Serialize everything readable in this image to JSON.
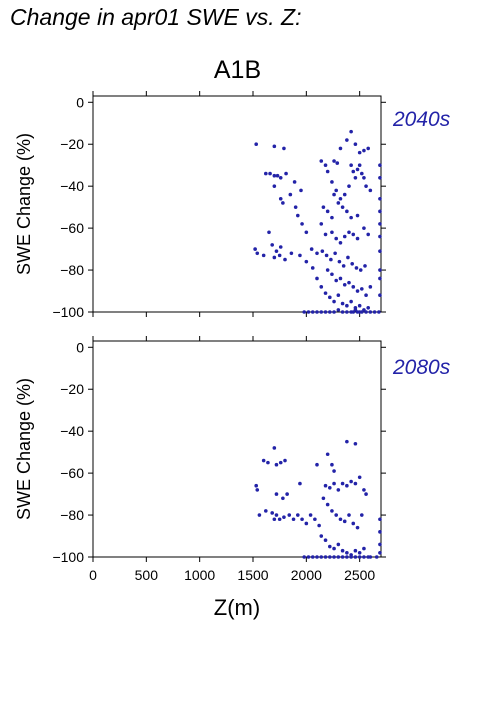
{
  "header": {
    "title": "Change in apr01 SWE vs. Z:",
    "scenario": "A1B"
  },
  "chart_data": [
    {
      "type": "scatter",
      "period_label": "2040s",
      "ylabel": "SWE Change (%)",
      "xlabel": "",
      "xlim": [
        0,
        2700
      ],
      "ylim": [
        -100,
        3
      ],
      "xticks": [
        0,
        500,
        1000,
        1500,
        2000,
        2500
      ],
      "yticks": [
        0,
        -20,
        -40,
        -60,
        -80,
        -100
      ],
      "ytick_labels": [
        "0",
        "−20",
        "−40",
        "−60",
        "−80",
        "−100"
      ],
      "show_x_tick_labels": false,
      "point_color": "#2323a8",
      "points": [
        [
          1530,
          -20
        ],
        [
          1700,
          -21
        ],
        [
          1790,
          -22
        ],
        [
          1620,
          -34
        ],
        [
          1660,
          -34
        ],
        [
          1700,
          -35
        ],
        [
          1730,
          -35
        ],
        [
          1760,
          -36
        ],
        [
          1810,
          -34
        ],
        [
          1890,
          -38
        ],
        [
          1950,
          -42
        ],
        [
          1700,
          -40
        ],
        [
          1760,
          -46
        ],
        [
          1780,
          -48
        ],
        [
          1850,
          -44
        ],
        [
          1900,
          -50
        ],
        [
          1650,
          -62
        ],
        [
          1680,
          -68
        ],
        [
          1720,
          -71
        ],
        [
          1760,
          -69
        ],
        [
          1520,
          -70
        ],
        [
          1540,
          -72
        ],
        [
          1600,
          -73
        ],
        [
          1700,
          -74
        ],
        [
          1750,
          -73
        ],
        [
          1800,
          -75
        ],
        [
          1860,
          -72
        ],
        [
          1940,
          -73
        ],
        [
          2000,
          -76
        ],
        [
          2050,
          -70
        ],
        [
          2100,
          -72
        ],
        [
          1920,
          -54
        ],
        [
          1960,
          -58
        ],
        [
          2000,
          -62
        ],
        [
          2140,
          -28
        ],
        [
          2180,
          -30
        ],
        [
          2200,
          -33
        ],
        [
          2240,
          -38
        ],
        [
          2260,
          -28
        ],
        [
          2290,
          -29
        ],
        [
          2320,
          -22
        ],
        [
          2380,
          -18
        ],
        [
          2420,
          -14
        ],
        [
          2460,
          -20
        ],
        [
          2500,
          -24
        ],
        [
          2540,
          -23
        ],
        [
          2580,
          -22
        ],
        [
          2420,
          -30
        ],
        [
          2440,
          -33
        ],
        [
          2460,
          -36
        ],
        [
          2480,
          -32
        ],
        [
          2500,
          -30
        ],
        [
          2520,
          -34
        ],
        [
          2540,
          -36
        ],
        [
          2560,
          -40
        ],
        [
          2600,
          -42
        ],
        [
          2400,
          -40
        ],
        [
          2360,
          -44
        ],
        [
          2320,
          -46
        ],
        [
          2280,
          -42
        ],
        [
          2260,
          -44
        ],
        [
          2300,
          -48
        ],
        [
          2340,
          -50
        ],
        [
          2380,
          -52
        ],
        [
          2420,
          -55
        ],
        [
          2480,
          -54
        ],
        [
          2160,
          -50
        ],
        [
          2200,
          -52
        ],
        [
          2240,
          -55
        ],
        [
          2140,
          -58
        ],
        [
          2180,
          -63
        ],
        [
          2240,
          -62
        ],
        [
          2280,
          -65
        ],
        [
          2320,
          -67
        ],
        [
          2360,
          -64
        ],
        [
          2400,
          -62
        ],
        [
          2440,
          -63
        ],
        [
          2480,
          -65
        ],
        [
          2540,
          -60
        ],
        [
          2580,
          -63
        ],
        [
          2150,
          -71
        ],
        [
          2190,
          -73
        ],
        [
          2230,
          -75
        ],
        [
          2270,
          -72
        ],
        [
          2310,
          -76
        ],
        [
          2350,
          -78
        ],
        [
          2390,
          -74
        ],
        [
          2430,
          -77
        ],
        [
          2470,
          -79
        ],
        [
          2510,
          -80
        ],
        [
          2550,
          -78
        ],
        [
          2200,
          -80
        ],
        [
          2240,
          -82
        ],
        [
          2280,
          -85
        ],
        [
          2320,
          -84
        ],
        [
          2360,
          -87
        ],
        [
          2400,
          -86
        ],
        [
          2440,
          -88
        ],
        [
          2480,
          -90
        ],
        [
          2520,
          -89
        ],
        [
          2560,
          -92
        ],
        [
          2600,
          -88
        ],
        [
          2060,
          -79
        ],
        [
          2100,
          -84
        ],
        [
          2140,
          -88
        ],
        [
          2180,
          -91
        ],
        [
          2220,
          -93
        ],
        [
          2260,
          -95
        ],
        [
          2300,
          -92
        ],
        [
          2340,
          -96
        ],
        [
          2380,
          -97
        ],
        [
          2420,
          -95
        ],
        [
          2460,
          -98
        ],
        [
          2500,
          -97
        ],
        [
          2540,
          -99
        ],
        [
          2580,
          -98
        ],
        [
          1980,
          -100
        ],
        [
          2020,
          -100
        ],
        [
          2060,
          -100
        ],
        [
          2100,
          -100
        ],
        [
          2140,
          -100
        ],
        [
          2180,
          -100
        ],
        [
          2220,
          -100
        ],
        [
          2260,
          -100
        ],
        [
          2300,
          -99
        ],
        [
          2340,
          -100
        ],
        [
          2380,
          -100
        ],
        [
          2420,
          -100
        ],
        [
          2440,
          -100
        ],
        [
          2460,
          -99
        ],
        [
          2480,
          -100
        ],
        [
          2500,
          -100
        ],
        [
          2520,
          -100
        ],
        [
          2560,
          -100
        ],
        [
          2600,
          -100
        ],
        [
          2640,
          -100
        ],
        [
          2680,
          -100
        ],
        [
          2690,
          -30
        ],
        [
          2690,
          -36
        ],
        [
          2690,
          -46
        ],
        [
          2690,
          -52
        ],
        [
          2690,
          -58
        ],
        [
          2690,
          -64
        ],
        [
          2690,
          -71
        ],
        [
          2690,
          -80
        ],
        [
          2690,
          -84
        ],
        [
          2690,
          -92
        ]
      ]
    },
    {
      "type": "scatter",
      "period_label": "2080s",
      "ylabel": "SWE Change (%)",
      "xlabel": "Z(m)",
      "xlim": [
        0,
        2700
      ],
      "ylim": [
        -100,
        3
      ],
      "xticks": [
        0,
        500,
        1000,
        1500,
        2000,
        2500
      ],
      "xtick_labels": [
        "0",
        "500",
        "1000",
        "1500",
        "2000",
        "2500"
      ],
      "yticks": [
        0,
        -20,
        -40,
        -60,
        -80,
        -100
      ],
      "ytick_labels": [
        "0",
        "−20",
        "−40",
        "−60",
        "−80",
        "−100"
      ],
      "show_x_tick_labels": true,
      "point_color": "#2323a8",
      "points": [
        [
          1600,
          -54
        ],
        [
          1640,
          -55
        ],
        [
          1700,
          -48
        ],
        [
          1720,
          -56
        ],
        [
          1760,
          -55
        ],
        [
          1800,
          -54
        ],
        [
          1940,
          -65
        ],
        [
          1530,
          -66
        ],
        [
          1540,
          -68
        ],
        [
          1560,
          -80
        ],
        [
          1620,
          -78
        ],
        [
          1680,
          -79
        ],
        [
          1700,
          -82
        ],
        [
          1720,
          -80
        ],
        [
          1750,
          -82
        ],
        [
          1790,
          -81
        ],
        [
          1840,
          -80
        ],
        [
          1880,
          -82
        ],
        [
          1720,
          -70
        ],
        [
          1780,
          -72
        ],
        [
          1820,
          -70
        ],
        [
          1920,
          -80
        ],
        [
          1960,
          -82
        ],
        [
          2000,
          -84
        ],
        [
          2040,
          -80
        ],
        [
          2080,
          -82
        ],
        [
          2120,
          -85
        ],
        [
          2100,
          -56
        ],
        [
          2200,
          -51
        ],
        [
          2240,
          -56
        ],
        [
          2260,
          -59
        ],
        [
          2180,
          -66
        ],
        [
          2220,
          -67
        ],
        [
          2260,
          -65
        ],
        [
          2300,
          -68
        ],
        [
          2340,
          -65
        ],
        [
          2380,
          -66
        ],
        [
          2420,
          -64
        ],
        [
          2460,
          -65
        ],
        [
          2380,
          -45
        ],
        [
          2460,
          -46
        ],
        [
          2500,
          -62
        ],
        [
          2540,
          -68
        ],
        [
          2560,
          -70
        ],
        [
          2160,
          -72
        ],
        [
          2200,
          -75
        ],
        [
          2240,
          -78
        ],
        [
          2280,
          -80
        ],
        [
          2320,
          -82
        ],
        [
          2360,
          -83
        ],
        [
          2400,
          -80
        ],
        [
          2440,
          -84
        ],
        [
          2480,
          -86
        ],
        [
          2520,
          -80
        ],
        [
          2140,
          -90
        ],
        [
          2180,
          -92
        ],
        [
          2220,
          -95
        ],
        [
          2260,
          -96
        ],
        [
          2300,
          -94
        ],
        [
          2340,
          -97
        ],
        [
          2380,
          -98
        ],
        [
          2420,
          -99
        ],
        [
          2460,
          -97
        ],
        [
          2500,
          -98
        ],
        [
          2540,
          -96
        ],
        [
          2580,
          -100
        ],
        [
          1980,
          -100
        ],
        [
          2020,
          -100
        ],
        [
          2060,
          -100
        ],
        [
          2100,
          -100
        ],
        [
          2140,
          -100
        ],
        [
          2180,
          -100
        ],
        [
          2220,
          -100
        ],
        [
          2260,
          -100
        ],
        [
          2300,
          -100
        ],
        [
          2340,
          -100
        ],
        [
          2380,
          -100
        ],
        [
          2420,
          -100
        ],
        [
          2460,
          -100
        ],
        [
          2500,
          -100
        ],
        [
          2540,
          -100
        ],
        [
          2600,
          -100
        ],
        [
          2660,
          -100
        ],
        [
          2690,
          -82
        ],
        [
          2690,
          -88
        ],
        [
          2690,
          -94
        ],
        [
          2690,
          -98
        ]
      ]
    }
  ]
}
